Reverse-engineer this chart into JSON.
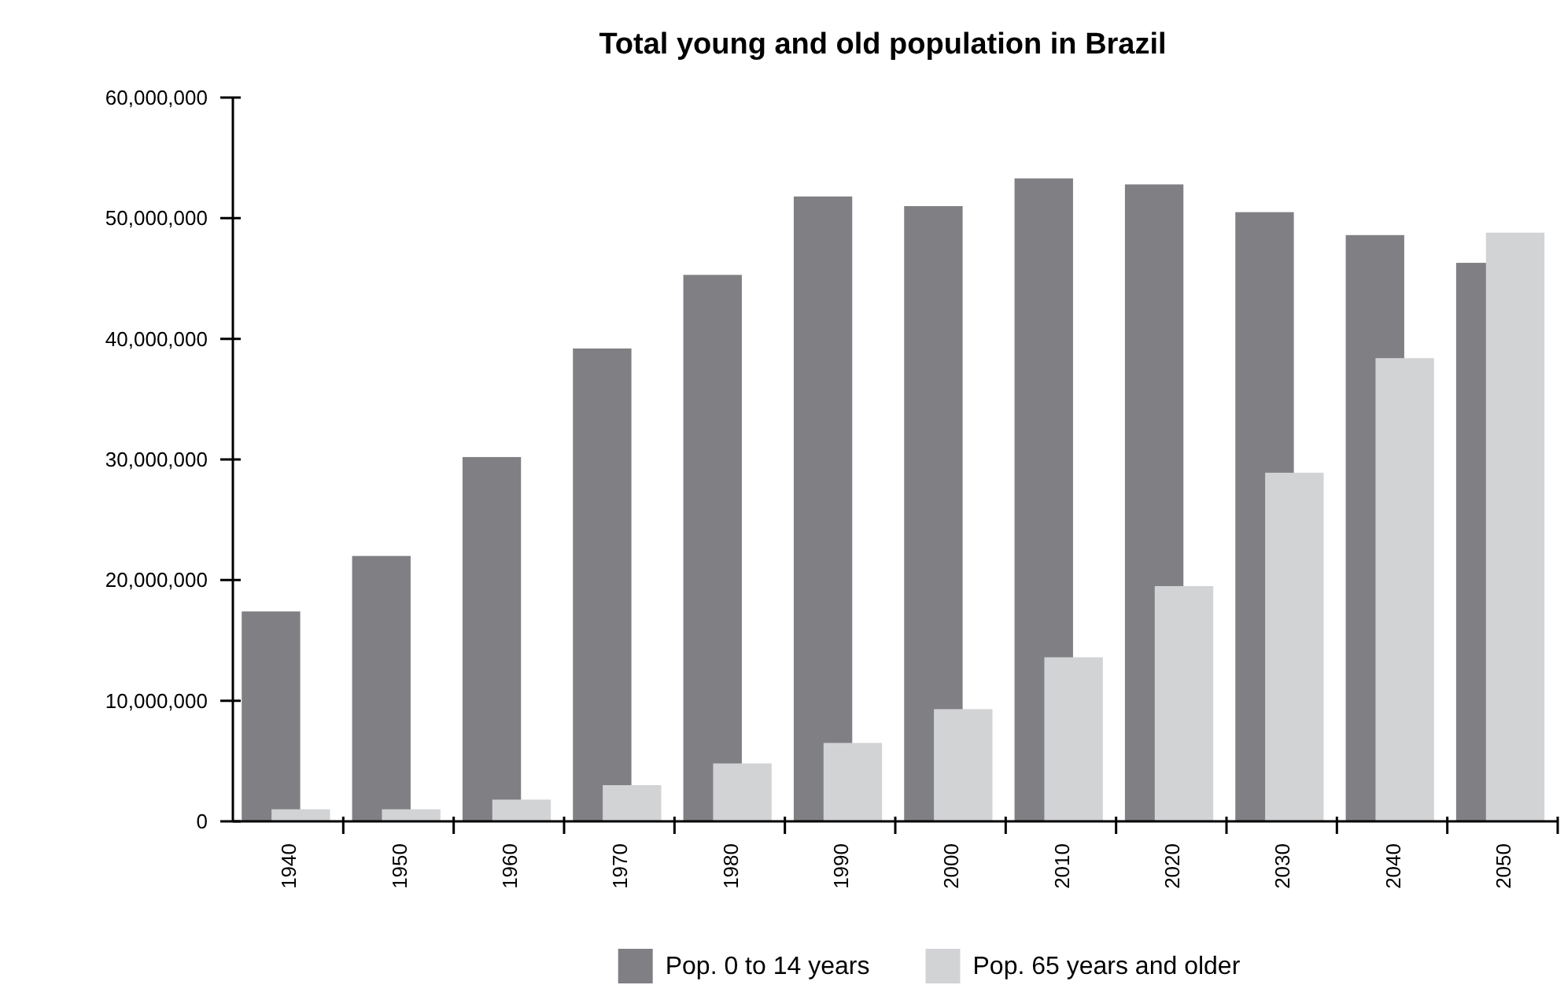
{
  "chart_data": {
    "type": "bar",
    "title": "Total young and old population in Brazil",
    "categories": [
      "1940",
      "1950",
      "1960",
      "1970",
      "1980",
      "1990",
      "2000",
      "2010",
      "2020",
      "2030",
      "2040",
      "2050"
    ],
    "series": [
      {
        "name": "Pop. 0 to 14 years",
        "color": "#808084",
        "values": [
          17400000,
          22000000,
          30200000,
          39200000,
          45300000,
          51800000,
          51000000,
          53300000,
          52800000,
          50500000,
          48600000,
          46300000
        ]
      },
      {
        "name": "Pop. 65 years and older",
        "color": "#d2d3d5",
        "values": [
          1000000,
          1000000,
          1800000,
          3000000,
          4800000,
          6500000,
          9300000,
          13600000,
          19500000,
          28900000,
          38400000,
          48800000
        ]
      }
    ],
    "ylim": [
      0,
      60000000
    ],
    "yticks": [
      0,
      {
        "value": 10000000,
        "label": "10,000,000"
      },
      {
        "value": 20000000,
        "label": "20,000,000"
      },
      {
        "value": 30000000,
        "label": "30,000,000"
      },
      {
        "value": 40000000,
        "label": "40,000,000"
      },
      {
        "value": 50000000,
        "label": "50,000,000"
      },
      {
        "value": 60000000,
        "label": "60,000,000"
      }
    ],
    "grid": false,
    "legend": "bottom"
  }
}
